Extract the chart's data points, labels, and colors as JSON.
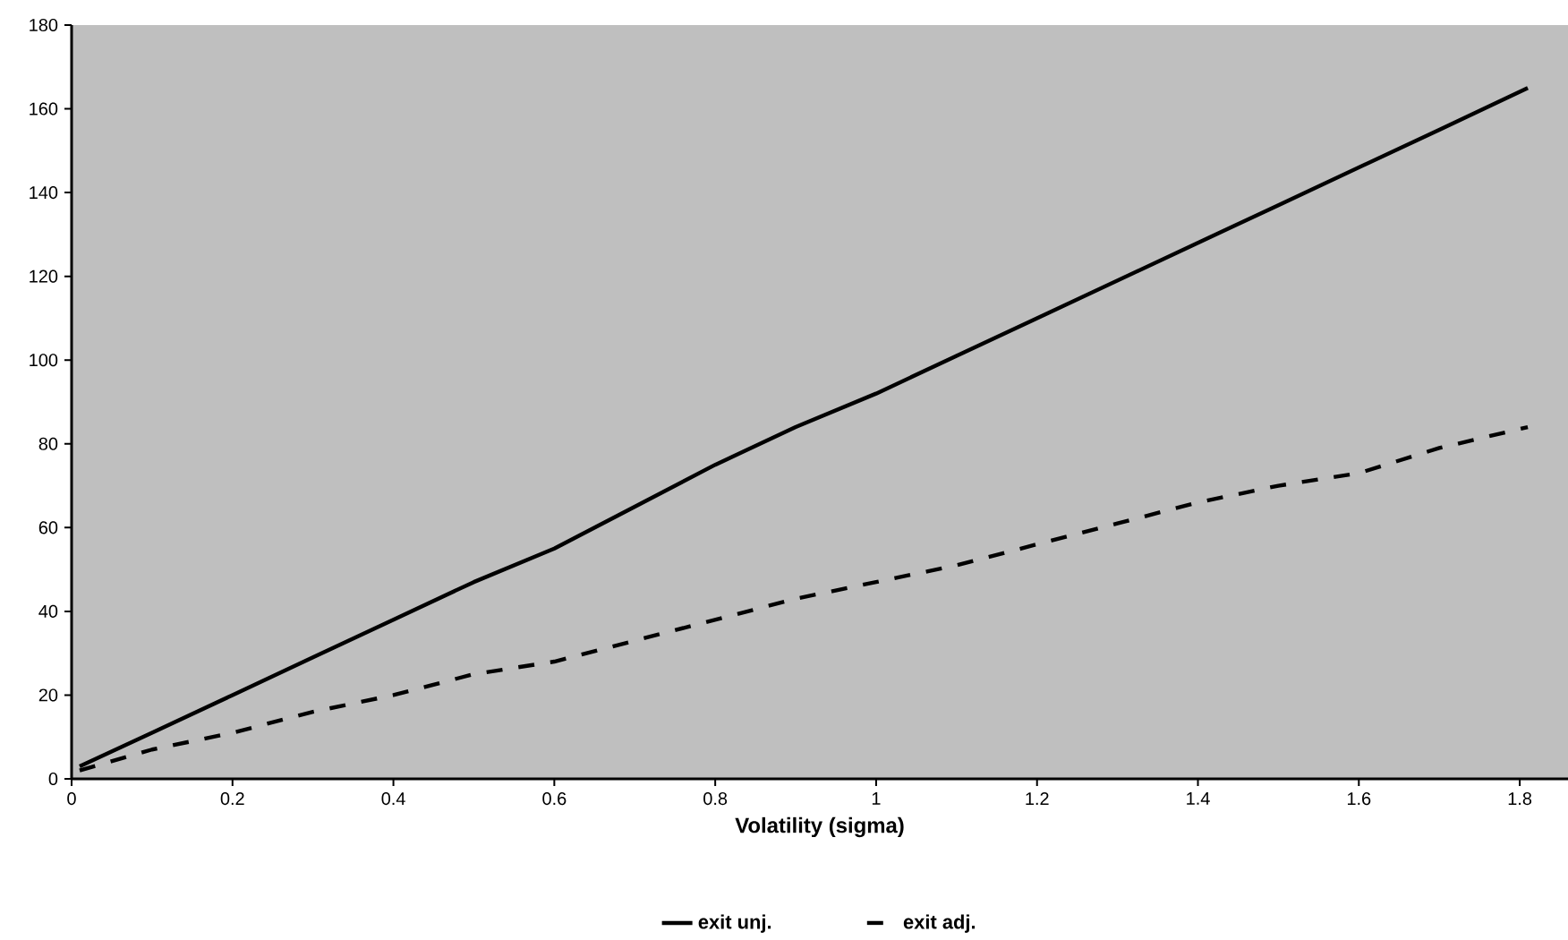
{
  "chart_data": {
    "type": "line",
    "xlabel": "Volatility (sigma)",
    "xlim": [
      0,
      1.86
    ],
    "xticks": [
      0,
      0.2,
      0.4,
      0.6,
      0.8,
      1,
      1.2,
      1.4,
      1.6,
      1.8
    ],
    "ylim": [
      0,
      180
    ],
    "yticks": [
      0,
      20,
      40,
      60,
      80,
      100,
      120,
      140,
      160,
      180
    ],
    "grid": false,
    "legend": "bottom",
    "marker": "none",
    "series": [
      {
        "name": "exit unj.",
        "color": "#000000",
        "line_style": "solid",
        "x": [
          0.01,
          0.1,
          0.2,
          0.3,
          0.4,
          0.5,
          0.6,
          0.7,
          0.8,
          0.9,
          1.0,
          1.1,
          1.2,
          1.3,
          1.4,
          1.5,
          1.6,
          1.7,
          1.81
        ],
        "values": [
          3,
          11,
          20,
          29,
          38,
          47,
          55,
          65,
          75,
          84,
          92,
          101,
          110,
          119,
          128,
          137,
          146,
          155,
          165
        ]
      },
      {
        "name": "exit adj.",
        "color": "#000000",
        "line_style": "dashed",
        "x": [
          0.01,
          0.1,
          0.2,
          0.3,
          0.4,
          0.5,
          0.6,
          0.7,
          0.8,
          0.9,
          1.0,
          1.1,
          1.2,
          1.3,
          1.4,
          1.5,
          1.6,
          1.7,
          1.81
        ],
        "values": [
          2,
          7,
          11,
          16,
          20,
          25,
          28,
          33,
          38,
          43,
          47,
          51,
          56,
          61,
          66,
          70,
          73,
          79,
          84
        ]
      }
    ]
  }
}
